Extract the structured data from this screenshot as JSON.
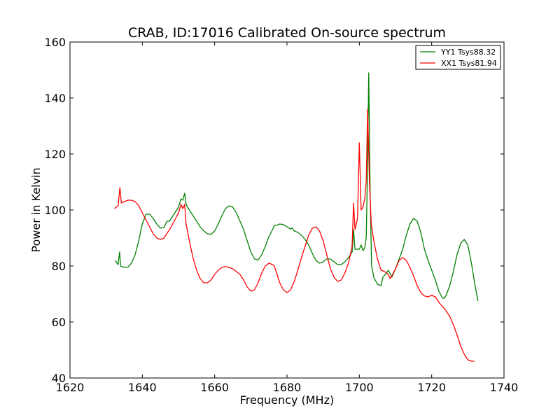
{
  "chart_data": {
    "type": "line",
    "title": "CRAB, ID:17016 Calibrated On-source spectrum",
    "xlabel": "Frequency (MHz)",
    "ylabel": "Power in Kelvin",
    "xlim": [
      1620,
      1740
    ],
    "ylim": [
      40,
      160
    ],
    "xticks": [
      1620,
      1640,
      1660,
      1680,
      1700,
      1720,
      1740
    ],
    "yticks": [
      40,
      60,
      80,
      100,
      120,
      140,
      160
    ],
    "grid": false,
    "legend_position": "top-right",
    "series": [
      {
        "name": "YY1 Tsys88.32",
        "color": "#008000",
        "points": [
          [
            1632.5,
            82
          ],
          [
            1633.3,
            80.5
          ],
          [
            1633.7,
            85
          ],
          [
            1634.0,
            80
          ],
          [
            1635,
            79.5
          ],
          [
            1636,
            79.6
          ],
          [
            1637,
            81
          ],
          [
            1638,
            84
          ],
          [
            1639,
            89
          ],
          [
            1640,
            95
          ],
          [
            1641,
            98.5
          ],
          [
            1642,
            98.5
          ],
          [
            1643,
            97
          ],
          [
            1644,
            95
          ],
          [
            1645,
            93.5
          ],
          [
            1646,
            93.8
          ],
          [
            1646.8,
            96
          ],
          [
            1647.5,
            96
          ],
          [
            1648.5,
            98
          ],
          [
            1650,
            101
          ],
          [
            1650.7,
            104
          ],
          [
            1651.2,
            103.5
          ],
          [
            1651.7,
            106
          ],
          [
            1652.1,
            102
          ],
          [
            1653,
            100
          ],
          [
            1654,
            98
          ],
          [
            1655,
            96
          ],
          [
            1656,
            94
          ],
          [
            1657,
            92.5
          ],
          [
            1658,
            91.5
          ],
          [
            1659,
            91.3
          ],
          [
            1660,
            92.5
          ],
          [
            1661,
            95
          ],
          [
            1662,
            98
          ],
          [
            1663,
            100.5
          ],
          [
            1664,
            101.5
          ],
          [
            1665,
            101
          ],
          [
            1666,
            99
          ],
          [
            1667,
            96
          ],
          [
            1668,
            93
          ],
          [
            1669,
            89
          ],
          [
            1670,
            85
          ],
          [
            1671,
            82.5
          ],
          [
            1672,
            82.2
          ],
          [
            1673,
            84
          ],
          [
            1674,
            87
          ],
          [
            1675,
            90.5
          ],
          [
            1676,
            93
          ],
          [
            1676.5,
            94.5
          ],
          [
            1677,
            94.5
          ],
          [
            1678,
            95
          ],
          [
            1679,
            94.8
          ],
          [
            1680,
            94
          ],
          [
            1681,
            93.2
          ],
          [
            1681.4,
            93.6
          ],
          [
            1682,
            92.5
          ],
          [
            1683,
            92
          ],
          [
            1684,
            91
          ],
          [
            1685,
            89.5
          ],
          [
            1686,
            87.5
          ],
          [
            1687,
            84.5
          ],
          [
            1688,
            82
          ],
          [
            1689,
            81
          ],
          [
            1690,
            81.5
          ],
          [
            1691,
            82.5
          ],
          [
            1692,
            82.5
          ],
          [
            1693,
            81.5
          ],
          [
            1694,
            80.5
          ],
          [
            1695,
            80.5
          ],
          [
            1696,
            81.5
          ],
          [
            1697,
            83
          ],
          [
            1698,
            85
          ],
          [
            1698.4,
            93
          ],
          [
            1698.8,
            86
          ],
          [
            1699.5,
            86
          ],
          [
            1700,
            86
          ],
          [
            1700.5,
            87.5
          ],
          [
            1701,
            85.5
          ],
          [
            1701.5,
            86.5
          ],
          [
            1701.9,
            90
          ],
          [
            1702.2,
            110
          ],
          [
            1702.6,
            149
          ],
          [
            1703,
            105
          ],
          [
            1703.4,
            80
          ],
          [
            1704,
            76
          ],
          [
            1705,
            73.5
          ],
          [
            1706,
            73
          ],
          [
            1706.5,
            76
          ],
          [
            1707.5,
            77.5
          ],
          [
            1708,
            78.5
          ],
          [
            1709,
            76
          ],
          [
            1710,
            79
          ],
          [
            1711,
            82.5
          ],
          [
            1712,
            86
          ],
          [
            1713,
            91
          ],
          [
            1714,
            95
          ],
          [
            1715,
            97
          ],
          [
            1716,
            96
          ],
          [
            1717,
            92
          ],
          [
            1718,
            86
          ],
          [
            1719,
            82
          ],
          [
            1720,
            78.5
          ],
          [
            1721,
            75
          ],
          [
            1722,
            71
          ],
          [
            1723,
            68.5
          ],
          [
            1723.5,
            68.5
          ],
          [
            1724,
            69.5
          ],
          [
            1725,
            73
          ],
          [
            1726,
            78
          ],
          [
            1727,
            84
          ],
          [
            1728,
            88
          ],
          [
            1729,
            89.5
          ],
          [
            1730,
            87.5
          ],
          [
            1731,
            81
          ],
          [
            1732,
            73
          ],
          [
            1732.8,
            67.5
          ]
        ]
      },
      {
        "name": "XX1 Tsys81.94",
        "color": "#ff0000",
        "points": [
          [
            1632.3,
            100.5
          ],
          [
            1633.3,
            101.5
          ],
          [
            1633.8,
            108
          ],
          [
            1634.2,
            102.5
          ],
          [
            1635,
            103
          ],
          [
            1636,
            103.5
          ],
          [
            1637,
            103.5
          ],
          [
            1638,
            103
          ],
          [
            1639,
            101.5
          ],
          [
            1640,
            99
          ],
          [
            1641,
            96.5
          ],
          [
            1642,
            94
          ],
          [
            1643,
            91.5
          ],
          [
            1644,
            90
          ],
          [
            1645,
            89.5
          ],
          [
            1646,
            90
          ],
          [
            1647,
            92
          ],
          [
            1648,
            94
          ],
          [
            1649,
            96.5
          ],
          [
            1650,
            99
          ],
          [
            1650.7,
            102
          ],
          [
            1651.2,
            100.5
          ],
          [
            1651.7,
            102
          ],
          [
            1652.1,
            95
          ],
          [
            1653,
            89
          ],
          [
            1654,
            83
          ],
          [
            1655,
            78.5
          ],
          [
            1656,
            75.5
          ],
          [
            1657,
            74
          ],
          [
            1658,
            74
          ],
          [
            1659,
            75
          ],
          [
            1660,
            77
          ],
          [
            1661,
            78.5
          ],
          [
            1662,
            79.5
          ],
          [
            1663,
            79.8
          ],
          [
            1664,
            79.5
          ],
          [
            1665,
            79
          ],
          [
            1666,
            78
          ],
          [
            1667,
            77
          ],
          [
            1668,
            75
          ],
          [
            1669,
            72.5
          ],
          [
            1670,
            71
          ],
          [
            1671,
            71.5
          ],
          [
            1672,
            74
          ],
          [
            1673,
            77.5
          ],
          [
            1674,
            80
          ],
          [
            1675,
            81
          ],
          [
            1676,
            80.5
          ],
          [
            1676.5,
            80
          ],
          [
            1677,
            78
          ],
          [
            1678,
            74
          ],
          [
            1679,
            71.5
          ],
          [
            1680,
            70.5
          ],
          [
            1681,
            71.5
          ],
          [
            1682,
            74.5
          ],
          [
            1683,
            78.5
          ],
          [
            1684,
            83
          ],
          [
            1685,
            87
          ],
          [
            1686,
            91
          ],
          [
            1687,
            93.5
          ],
          [
            1688,
            94
          ],
          [
            1689,
            92.5
          ],
          [
            1690,
            89
          ],
          [
            1691,
            84
          ],
          [
            1692,
            79
          ],
          [
            1693,
            76
          ],
          [
            1694,
            74.5
          ],
          [
            1695,
            75
          ],
          [
            1696,
            77.5
          ],
          [
            1697,
            81
          ],
          [
            1698,
            87
          ],
          [
            1698.4,
            102.5
          ],
          [
            1698.8,
            93
          ],
          [
            1699.5,
            97
          ],
          [
            1700,
            124
          ],
          [
            1700.5,
            100
          ],
          [
            1701,
            101
          ],
          [
            1701.5,
            104
          ],
          [
            1701.9,
            110
          ],
          [
            1702.3,
            136
          ],
          [
            1702.8,
            110
          ],
          [
            1703.3,
            95
          ],
          [
            1704,
            89
          ],
          [
            1705,
            82.5
          ],
          [
            1706,
            78.5
          ],
          [
            1707,
            78
          ],
          [
            1708,
            77
          ],
          [
            1708.5,
            75.5
          ],
          [
            1709,
            76.5
          ],
          [
            1710,
            79
          ],
          [
            1711,
            82
          ],
          [
            1712,
            83
          ],
          [
            1713,
            82
          ],
          [
            1714,
            79.5
          ],
          [
            1715,
            76.5
          ],
          [
            1716,
            73
          ],
          [
            1717,
            70.5
          ],
          [
            1718,
            69.3
          ],
          [
            1719,
            69
          ],
          [
            1720,
            69.5
          ],
          [
            1721,
            69
          ],
          [
            1722,
            67
          ],
          [
            1723,
            65.5
          ],
          [
            1724,
            64
          ],
          [
            1725,
            62
          ],
          [
            1726,
            59
          ],
          [
            1727,
            55.5
          ],
          [
            1728,
            51.5
          ],
          [
            1729,
            48.5
          ],
          [
            1730,
            46.5
          ],
          [
            1731,
            46
          ],
          [
            1731.8,
            46
          ]
        ]
      }
    ]
  }
}
